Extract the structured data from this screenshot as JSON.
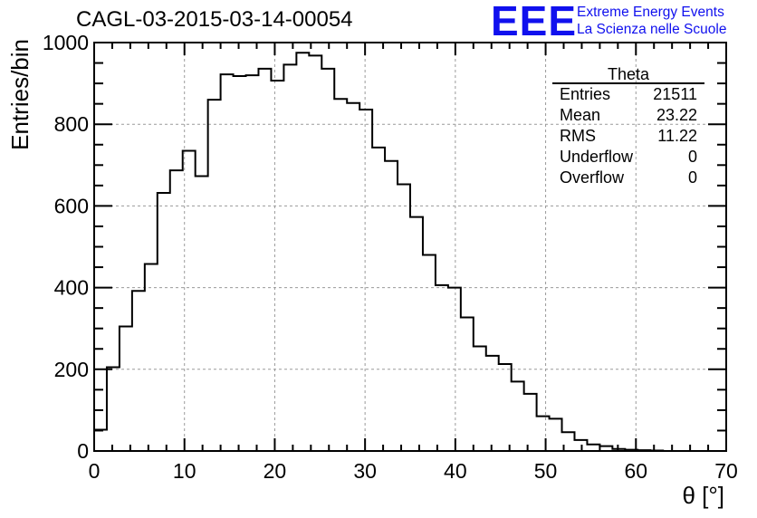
{
  "header": {
    "title": "CAGL-03-2015-03-14-00054",
    "logo": "EEE",
    "logo_line1": "Extreme Energy Events",
    "logo_line2": "La Scienza nelle Scuole"
  },
  "stats": {
    "name": "Theta",
    "rows": [
      {
        "label": "Entries",
        "value": "21511"
      },
      {
        "label": "Mean",
        "value": "23.22"
      },
      {
        "label": "RMS",
        "value": "11.22"
      },
      {
        "label": "Underflow",
        "value": "0"
      },
      {
        "label": "Overflow",
        "value": "0"
      }
    ]
  },
  "chart_data": {
    "type": "histogram",
    "xlabel": "θ [°]",
    "ylabel": "Entries/bin",
    "xlim": [
      0,
      70
    ],
    "ylim": [
      0,
      1000
    ],
    "bin_width": 1.4,
    "xticks": [
      0,
      10,
      20,
      30,
      40,
      50,
      60,
      70
    ],
    "yticks": [
      0,
      200,
      400,
      600,
      800,
      1000
    ],
    "grid": true,
    "values": [
      52,
      205,
      305,
      392,
      458,
      632,
      687,
      735,
      673,
      860,
      922,
      918,
      920,
      936,
      907,
      946,
      975,
      968,
      936,
      862,
      852,
      836,
      743,
      710,
      653,
      573,
      480,
      406,
      400,
      327,
      256,
      233,
      213,
      170,
      140,
      85,
      79,
      46,
      27,
      16,
      12,
      5,
      3,
      2,
      1,
      0,
      0,
      0,
      0,
      0
    ],
    "line_color": "#000000"
  }
}
